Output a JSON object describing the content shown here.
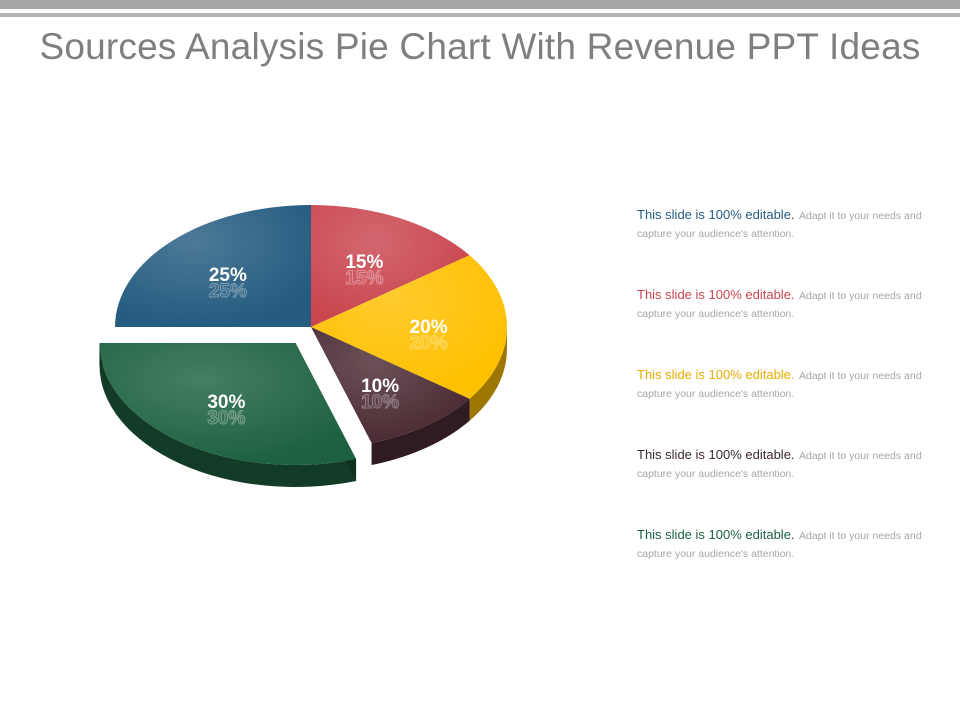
{
  "slide": {
    "title": "Sources Analysis Pie Chart With Revenue PPT Ideas"
  },
  "chart_data": {
    "type": "pie",
    "slices": [
      {
        "label": "15%",
        "value": 15,
        "color": "#c9454f"
      },
      {
        "label": "20%",
        "value": 20,
        "color": "#ffc000"
      },
      {
        "label": "10%",
        "value": 10,
        "color": "#4b2b33"
      },
      {
        "label": "30%",
        "value": 30,
        "color": "#1d6140"
      },
      {
        "label": "25%",
        "value": 25,
        "color": "#255c80"
      }
    ],
    "exploded_slice": "30%",
    "style": "3d"
  },
  "legend": {
    "items": [
      {
        "head": "This slide is 100% editable.",
        "body": "Adapt it to your needs and capture your audience's attention.",
        "color": "#255c80"
      },
      {
        "head": "This slide is 100% editable.",
        "body": "Adapt it to your needs and capture your audience's attention.",
        "color": "#c9454f"
      },
      {
        "head": "This slide is 100% editable.",
        "body": "Adapt it to your needs and capture your audience's attention.",
        "color": "#e8ac00"
      },
      {
        "head": "This slide is 100% editable.",
        "body": "Adapt it to your needs and capture your audience's attention.",
        "color": "#3a2a2e"
      },
      {
        "head": "This slide is 100% editable.",
        "body": "Adapt it to your needs and capture your audience's attention.",
        "color": "#1d6140"
      }
    ]
  }
}
